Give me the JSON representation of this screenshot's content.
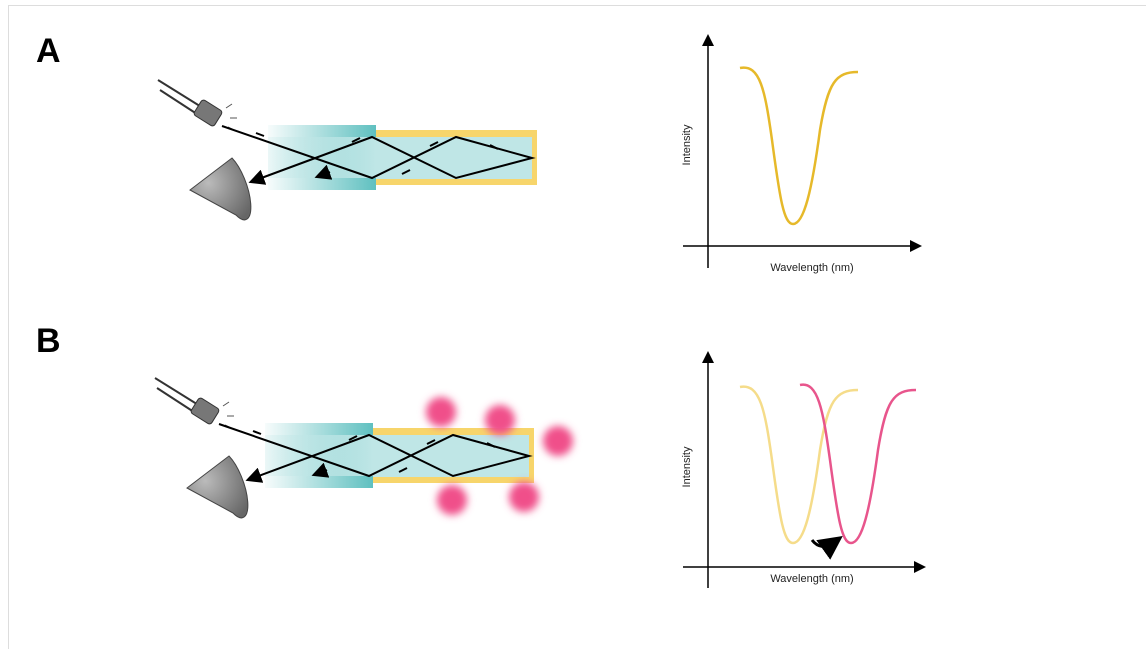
{
  "panels": [
    {
      "label": "A",
      "y_axis_label": "Intensity",
      "x_axis_label": "Wavelength (nm)"
    },
    {
      "label": "B",
      "y_axis_label": "Intensity",
      "x_axis_label": "Wavelength (nm)"
    }
  ]
}
